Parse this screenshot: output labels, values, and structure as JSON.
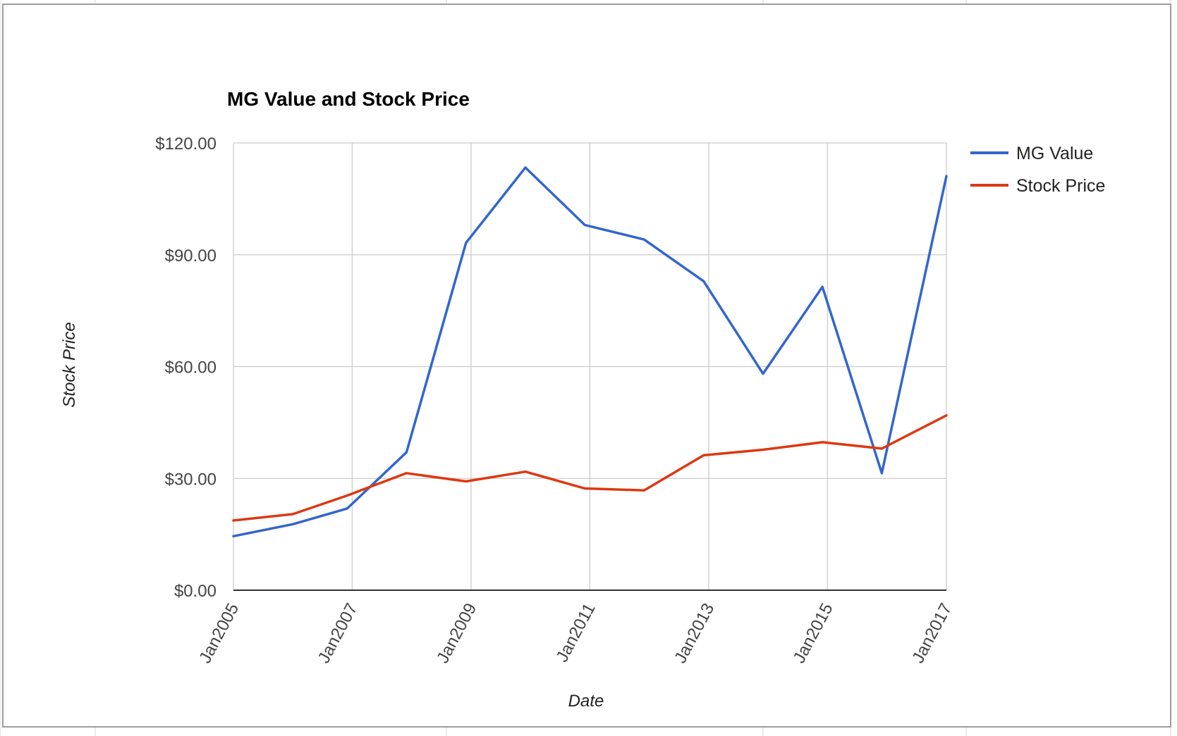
{
  "chart_data": {
    "type": "line",
    "title": "MG Value and Stock Price",
    "xlabel": "Date",
    "ylabel": "Stock Price",
    "ylim": [
      0,
      120
    ],
    "y_ticks": [
      "$0.00",
      "$30.00",
      "$60.00",
      "$90.00",
      "$120.00"
    ],
    "y_tick_values": [
      0,
      30,
      60,
      90,
      120
    ],
    "x_range": [
      "2005-01-01",
      "2017-01-01"
    ],
    "x_ticks": [
      "Jan2005",
      "Jan2007",
      "Jan2009",
      "Jan2011",
      "Jan2013",
      "Jan2015",
      "Jan2017"
    ],
    "x_tick_dates": [
      "2005-01-01",
      "2007-01-01",
      "2009-01-01",
      "2011-01-01",
      "2013-01-01",
      "2015-01-01",
      "2017-01-01"
    ],
    "grid": true,
    "legend_position": "right",
    "x": [
      "2005-01-01",
      "2006-01-01",
      "2006-12-01",
      "2007-12-01",
      "2008-12-01",
      "2009-12-01",
      "2010-12-01",
      "2011-12-01",
      "2012-12-01",
      "2013-12-01",
      "2014-12-01",
      "2015-12-01",
      "2017-01-01"
    ],
    "series": [
      {
        "name": "MG Value",
        "color": "#3366cc",
        "values": [
          14.5,
          17.7,
          21.9,
          37.0,
          93.2,
          113.4,
          98.0,
          94.1,
          82.9,
          58.1,
          81.4,
          31.4,
          111.1
        ]
      },
      {
        "name": "Stock Price",
        "color": "#dc3912",
        "values": [
          18.7,
          20.4,
          25.4,
          31.4,
          29.2,
          31.8,
          27.3,
          26.8,
          36.2,
          37.7,
          39.7,
          38.0,
          46.9
        ]
      }
    ]
  }
}
